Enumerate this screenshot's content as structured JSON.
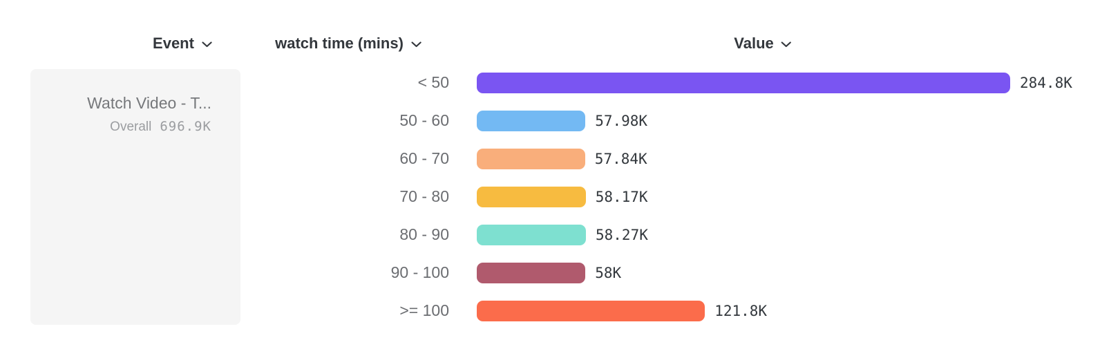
{
  "header": {
    "columns": [
      {
        "label": "Event"
      },
      {
        "label": "watch time (mins)"
      },
      {
        "label": "Value"
      }
    ]
  },
  "event_panel": {
    "title": "Watch Video - T...",
    "overall_label": "Overall",
    "overall_value": "696.9K"
  },
  "chart_data": {
    "type": "bar",
    "orientation": "horizontal",
    "title": "",
    "xlabel": "watch time (mins)",
    "ylabel": "Value",
    "categories": [
      "< 50",
      "50 - 60",
      "60 - 70",
      "70 - 80",
      "80 - 90",
      "90 - 100",
      ">= 100"
    ],
    "values": [
      284800,
      57980,
      57840,
      58170,
      58270,
      58000,
      121800
    ],
    "value_labels": [
      "284.8K",
      "57.98K",
      "57.84K",
      "58.17K",
      "58.27K",
      "58K",
      "121.8K"
    ],
    "bar_colors": [
      "#7a55f2",
      "#73b9f3",
      "#f9ae7b",
      "#f7bb40",
      "#7ee0d0",
      "#b05a6d",
      "#fb6c4b"
    ],
    "xlim": [
      0,
      284800
    ],
    "grid": false,
    "legend": false
  },
  "colors": {
    "header_text": "#33373c",
    "category_label": "#6b6d71",
    "value_label": "#33383d",
    "panel_bg": "#f5f5f5"
  }
}
